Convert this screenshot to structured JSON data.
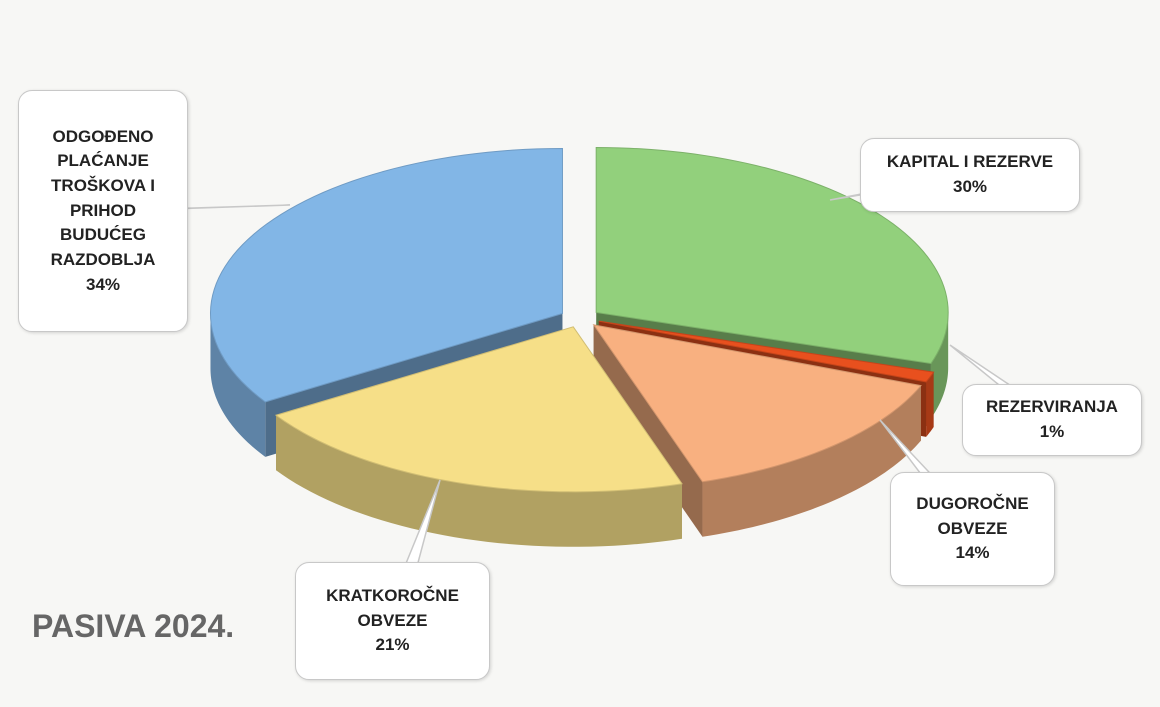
{
  "chart_data": {
    "type": "pie",
    "title": "PASIVA 2024.",
    "categories": [
      "KAPITAL I REZERVE",
      "REZERVIRANJA",
      "DUGOROČNE OBVEZE",
      "KRATKOROČNE OBVEZE",
      "ODGOĐENO PLAĆANJE TROŠKOVA I PRIHOD BUDUĆEG RAZDOBLJA"
    ],
    "values": [
      30,
      1,
      14,
      21,
      34
    ],
    "value_labels": [
      "30%",
      "1%",
      "14%",
      "21%",
      "34%"
    ],
    "colors": [
      "#92d07c",
      "#e8501e",
      "#f8b080",
      "#f6df88",
      "#82b6e6"
    ]
  }
}
